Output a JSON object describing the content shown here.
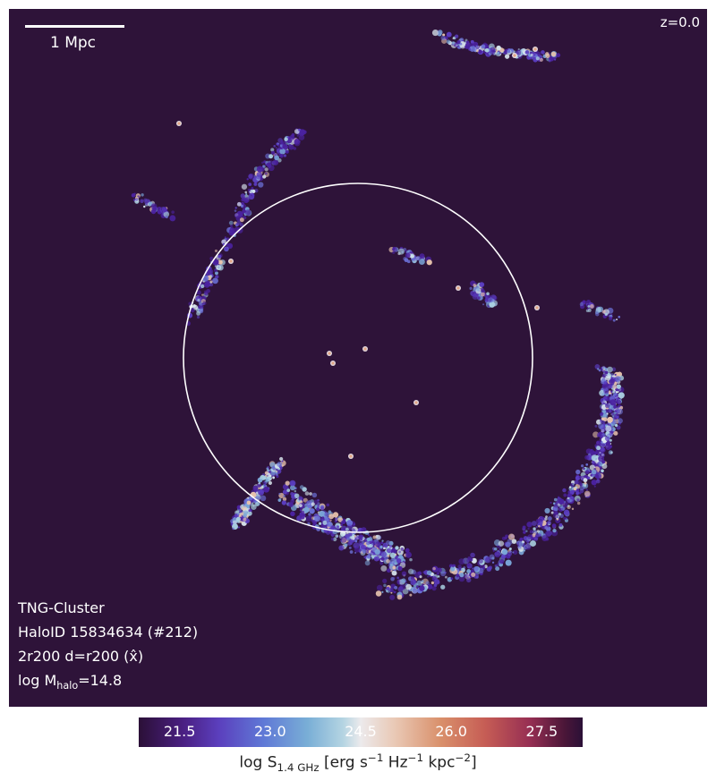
{
  "redshift": "z=0.0",
  "scalebar": {
    "label": "1 Mpc"
  },
  "info": {
    "simulation": "TNG-Cluster",
    "halo_id": "HaloID 15834634 (#212)",
    "projection": "2r200 d=r200 (x̂)",
    "mass_prefix": "log M",
    "mass_sub": "halo",
    "mass_value": "=14.8"
  },
  "colorbar": {
    "ticks": [
      "21.5",
      "23.0",
      "24.5",
      "26.0",
      "27.5"
    ],
    "label_prefix": "log S",
    "label_sub": "1.4 GHz",
    "label_suffix_1": " [erg s",
    "label_sup_1": "−1",
    "label_suffix_2": " Hz",
    "label_sup_2": "−1",
    "label_suffix_3": " kpc",
    "label_sup_3": "−2",
    "label_suffix_4": "]"
  },
  "colors": {
    "background": "#2e1339",
    "circle": "#ffffff"
  }
}
